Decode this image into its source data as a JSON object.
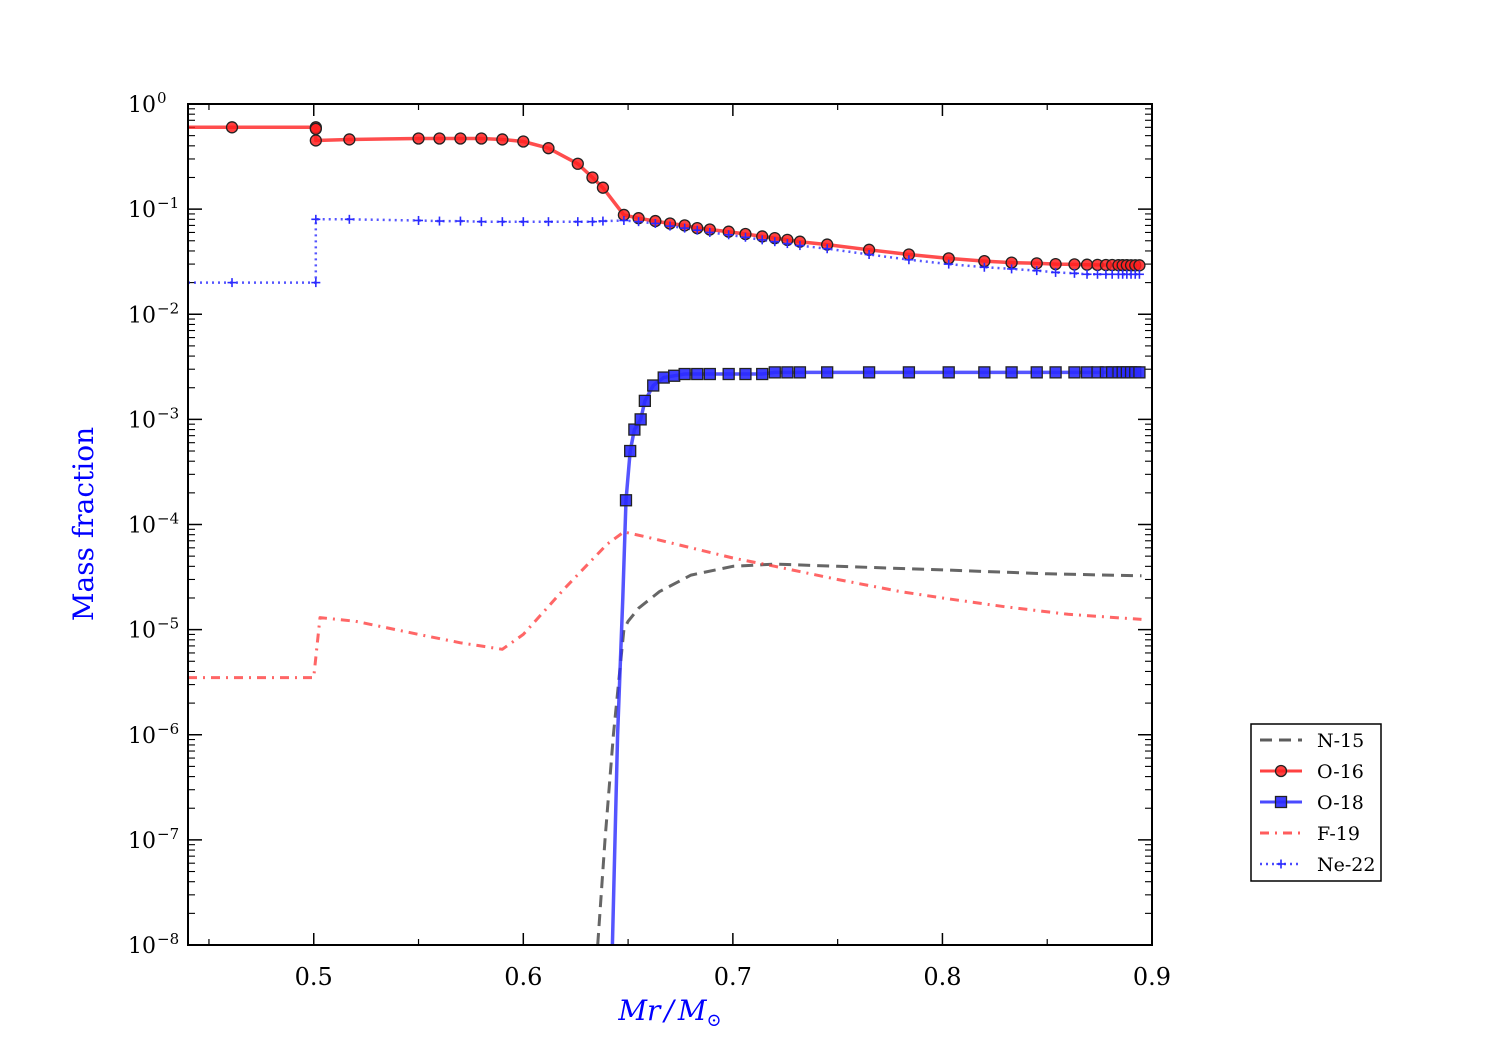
{
  "chart_data": {
    "type": "line",
    "xlabel_main": "Mr",
    "xlabel_sep": "/",
    "xlabel_sub": "M",
    "xlabel_sun": "⊙",
    "ylabel": "Mass fraction",
    "label_color": "#0000ff",
    "xlim": [
      0.44,
      0.9
    ],
    "ylim_log10": [
      -8,
      0
    ],
    "yscale": "log",
    "x_ticks": [
      0.5,
      0.6,
      0.7,
      0.8,
      0.9
    ],
    "x_tick_labels": [
      "0.5",
      "0.6",
      "0.7",
      "0.8",
      "0.9"
    ],
    "y_ticks_log10": [
      0,
      -1,
      -2,
      -3,
      -4,
      -5,
      -6,
      -7,
      -8
    ],
    "y_tick_bases": [
      "10",
      "10",
      "10",
      "10",
      "10",
      "10",
      "10",
      "10",
      "10"
    ],
    "y_tick_exps": [
      "0",
      "−1",
      "−2",
      "−3",
      "−4",
      "−5",
      "−6",
      "−7",
      "−8"
    ],
    "legend_position": "right, outside plot area",
    "series": [
      {
        "name": "N-15",
        "color": "#404040",
        "style": "dashed",
        "marker": "none",
        "x": [
          0.6355,
          0.639,
          0.643,
          0.646,
          0.648,
          0.65,
          0.655,
          0.665,
          0.68,
          0.7,
          0.72,
          0.75,
          0.8,
          0.85,
          0.895
        ],
        "y": [
          1e-08,
          1e-07,
          1e-06,
          4e-06,
          1e-05,
          1.2e-05,
          1.6e-05,
          2.3e-05,
          3.3e-05,
          4e-05,
          4.2e-05,
          4e-05,
          3.7e-05,
          3.4e-05,
          3.25e-05
        ]
      },
      {
        "name": "O-16",
        "color": "#ff2020",
        "style": "solid",
        "marker": "circle",
        "x": [
          0.44,
          0.461,
          0.501,
          0.501,
          0.501,
          0.517,
          0.55,
          0.56,
          0.57,
          0.58,
          0.59,
          0.6,
          0.612,
          0.626,
          0.633,
          0.638,
          0.648,
          0.655,
          0.663,
          0.67,
          0.677,
          0.683,
          0.689,
          0.698,
          0.706,
          0.714,
          0.72,
          0.726,
          0.732,
          0.745,
          0.765,
          0.784,
          0.803,
          0.82,
          0.833,
          0.845,
          0.854,
          0.863,
          0.869,
          0.874,
          0.878,
          0.881,
          0.884,
          0.886,
          0.888,
          0.89,
          0.892,
          0.894
        ],
        "y": [
          0.6,
          0.6,
          0.6,
          0.58,
          0.45,
          0.46,
          0.47,
          0.47,
          0.47,
          0.47,
          0.46,
          0.44,
          0.38,
          0.27,
          0.2,
          0.16,
          0.088,
          0.082,
          0.077,
          0.073,
          0.07,
          0.066,
          0.064,
          0.061,
          0.058,
          0.055,
          0.053,
          0.051,
          0.049,
          0.046,
          0.041,
          0.037,
          0.034,
          0.032,
          0.031,
          0.0305,
          0.03,
          0.0298,
          0.0296,
          0.0295,
          0.0294,
          0.0294,
          0.0293,
          0.0293,
          0.0293,
          0.0292,
          0.0292,
          0.0292
        ]
      },
      {
        "name": "O-18",
        "color": "#2a2aff",
        "style": "solid",
        "marker": "square",
        "x": [
          0.6425,
          0.645,
          0.6475,
          0.649,
          0.651,
          0.653,
          0.656,
          0.658,
          0.662,
          0.667,
          0.672,
          0.677,
          0.683,
          0.689,
          0.698,
          0.706,
          0.714,
          0.72,
          0.726,
          0.732,
          0.745,
          0.765,
          0.784,
          0.803,
          0.82,
          0.833,
          0.845,
          0.854,
          0.863,
          0.869,
          0.874,
          0.878,
          0.881,
          0.884,
          0.886,
          0.888,
          0.89,
          0.892,
          0.894
        ],
        "y": [
          1e-08,
          1e-06,
          2e-05,
          0.00017,
          0.0005,
          0.0008,
          0.001,
          0.0015,
          0.0021,
          0.0025,
          0.0026,
          0.0027,
          0.0027,
          0.0027,
          0.0027,
          0.0027,
          0.0027,
          0.0028,
          0.0028,
          0.0028,
          0.0028,
          0.0028,
          0.0028,
          0.0028,
          0.0028,
          0.0028,
          0.0028,
          0.0028,
          0.0028,
          0.0028,
          0.0028,
          0.0028,
          0.0028,
          0.0028,
          0.0028,
          0.0028,
          0.0028,
          0.0028,
          0.0028
        ]
      },
      {
        "name": "F-19",
        "color": "#ff4040",
        "style": "dashdot",
        "marker": "none",
        "x": [
          0.44,
          0.5,
          0.5,
          0.503,
          0.52,
          0.55,
          0.57,
          0.59,
          0.6,
          0.62,
          0.64,
          0.648,
          0.66,
          0.68,
          0.7,
          0.72,
          0.75,
          0.78,
          0.8,
          0.83,
          0.86,
          0.895
        ],
        "y": [
          3.5e-06,
          3.5e-06,
          3.5e-06,
          1.3e-05,
          1.2e-05,
          9e-06,
          7.5e-06,
          6.5e-06,
          9e-06,
          2.5e-05,
          6.5e-05,
          8.5e-05,
          7.5e-05,
          6e-05,
          4.8e-05,
          4e-05,
          3e-05,
          2.3e-05,
          2e-05,
          1.65e-05,
          1.4e-05,
          1.25e-05
        ]
      },
      {
        "name": "Ne-22",
        "color": "#2a2aff",
        "style": "dotted",
        "marker": "plus",
        "x": [
          0.44,
          0.461,
          0.501,
          0.501,
          0.517,
          0.55,
          0.56,
          0.57,
          0.58,
          0.59,
          0.6,
          0.612,
          0.626,
          0.633,
          0.638,
          0.648,
          0.655,
          0.663,
          0.67,
          0.677,
          0.683,
          0.689,
          0.698,
          0.706,
          0.714,
          0.72,
          0.726,
          0.732,
          0.745,
          0.765,
          0.784,
          0.803,
          0.82,
          0.833,
          0.845,
          0.854,
          0.863,
          0.869,
          0.874,
          0.878,
          0.881,
          0.884,
          0.886,
          0.888,
          0.89,
          0.892,
          0.894
        ],
        "y": [
          0.02,
          0.02,
          0.02,
          0.08,
          0.08,
          0.078,
          0.077,
          0.077,
          0.076,
          0.076,
          0.076,
          0.076,
          0.076,
          0.076,
          0.077,
          0.078,
          0.076,
          0.073,
          0.069,
          0.066,
          0.063,
          0.06,
          0.057,
          0.054,
          0.051,
          0.049,
          0.047,
          0.045,
          0.042,
          0.037,
          0.033,
          0.03,
          0.028,
          0.027,
          0.026,
          0.025,
          0.0245,
          0.024,
          0.024,
          0.024,
          0.024,
          0.024,
          0.024,
          0.024,
          0.024,
          0.024,
          0.024
        ]
      }
    ]
  }
}
